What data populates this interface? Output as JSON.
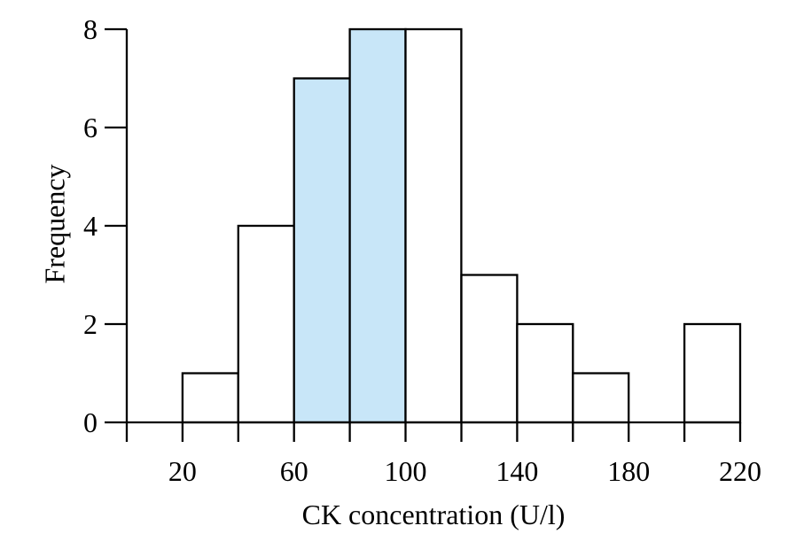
{
  "chart_data": {
    "type": "bar",
    "subtype": "histogram",
    "title": "",
    "xlabel": "CK concentration (U/l)",
    "ylabel": "Frequency",
    "xlim": [
      0,
      220
    ],
    "ylim": [
      0,
      8
    ],
    "grid": false,
    "legend": "none",
    "bins": [
      {
        "start": 20,
        "end": 40,
        "frequency": 1,
        "highlighted": false
      },
      {
        "start": 40,
        "end": 60,
        "frequency": 4,
        "highlighted": false
      },
      {
        "start": 60,
        "end": 80,
        "frequency": 7,
        "highlighted": true
      },
      {
        "start": 80,
        "end": 100,
        "frequency": 8,
        "highlighted": true
      },
      {
        "start": 100,
        "end": 120,
        "frequency": 8,
        "highlighted": false
      },
      {
        "start": 120,
        "end": 140,
        "frequency": 3,
        "highlighted": false
      },
      {
        "start": 140,
        "end": 160,
        "frequency": 2,
        "highlighted": false
      },
      {
        "start": 160,
        "end": 180,
        "frequency": 1,
        "highlighted": false
      },
      {
        "start": 180,
        "end": 200,
        "frequency": 0,
        "highlighted": false
      },
      {
        "start": 200,
        "end": 220,
        "frequency": 2,
        "highlighted": false
      }
    ],
    "x_ticks": [
      0,
      20,
      40,
      60,
      80,
      100,
      120,
      140,
      160,
      180,
      200,
      220
    ],
    "x_tick_labels": [
      "20",
      "60",
      "100",
      "140",
      "180",
      "220"
    ],
    "x_tick_label_values": [
      20,
      60,
      100,
      140,
      180,
      220
    ],
    "y_ticks": [
      0,
      2,
      4,
      6,
      8
    ],
    "colors": {
      "highlight_fill": "#c8e6f8",
      "bar_fill": "#ffffff",
      "stroke": "#000000",
      "text": "#000000",
      "background": "#ffffff"
    }
  }
}
